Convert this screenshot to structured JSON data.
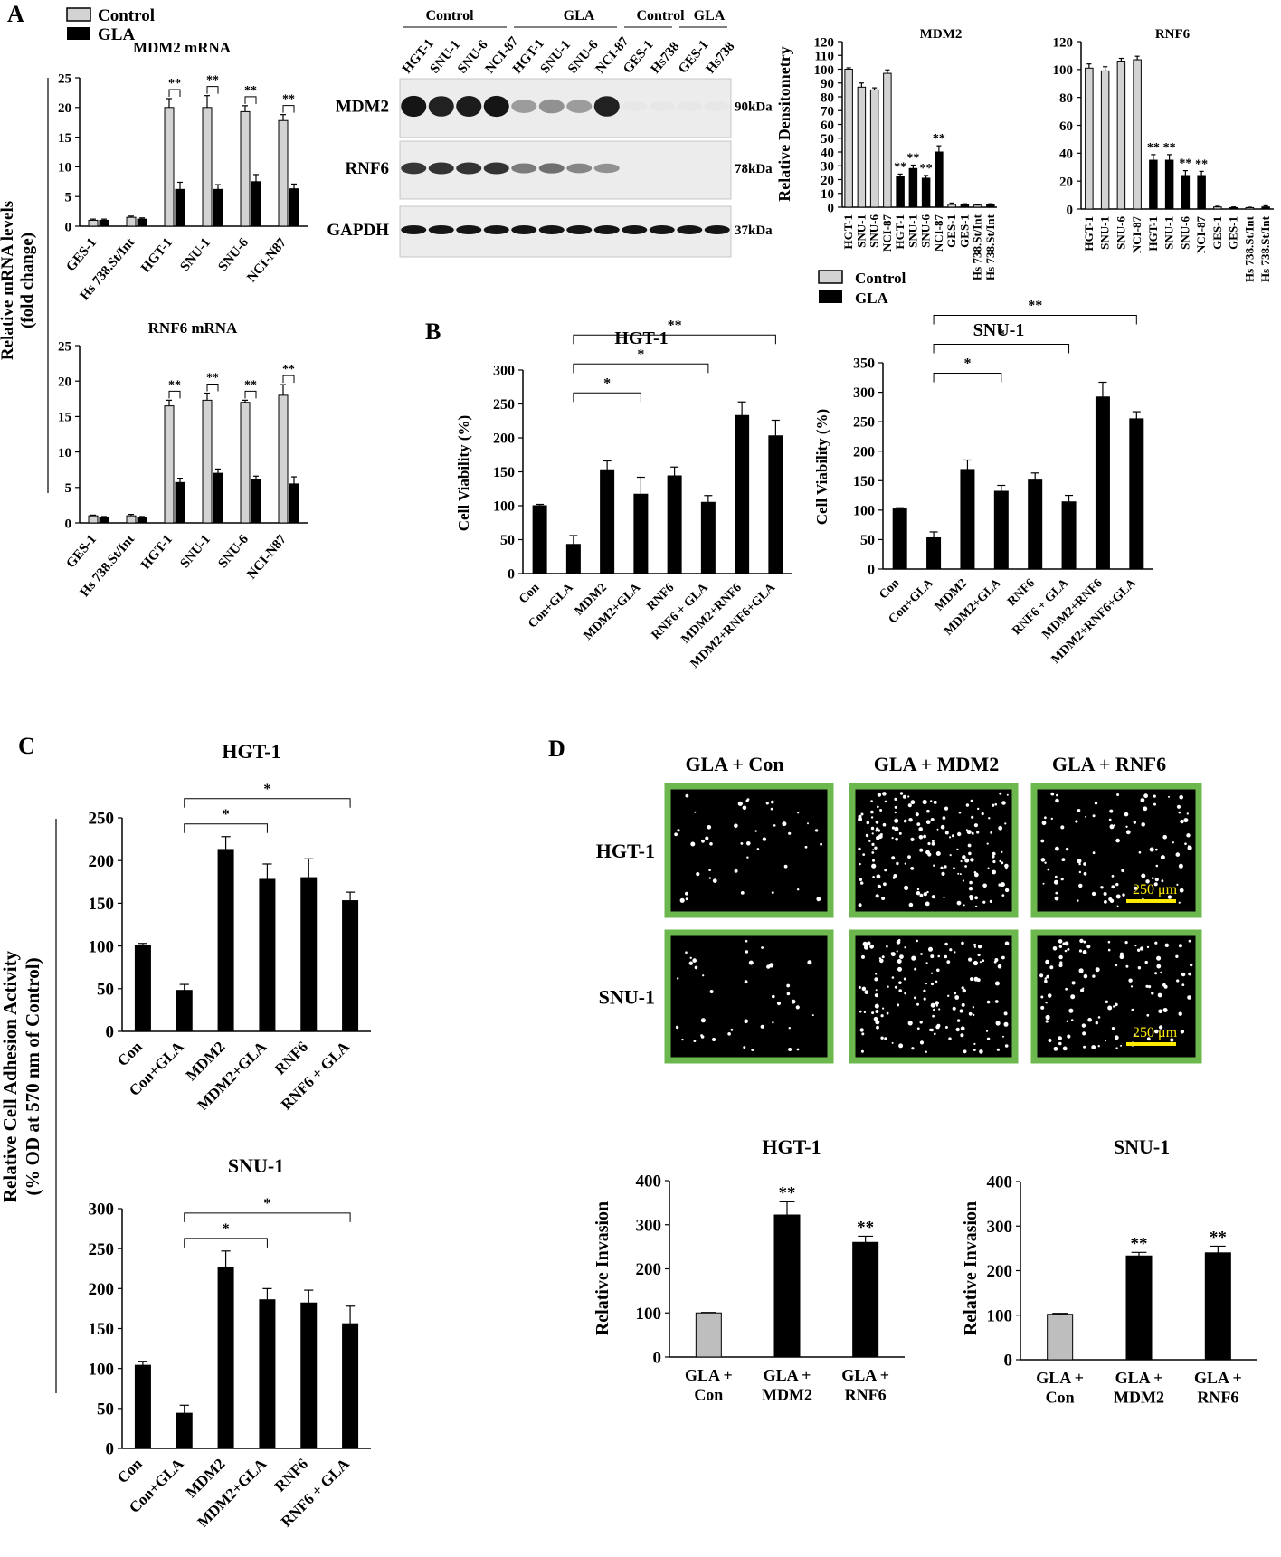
{
  "panels": {
    "A": "A",
    "B": "B",
    "C": "C",
    "D": "D"
  },
  "colors": {
    "control": "#d3d3d3",
    "gla": "#000000",
    "frame": "#6cb84e",
    "scale": "#ffeb00",
    "blot_bg": "#ececec"
  },
  "mrna": {
    "legend": {
      "control": "Control",
      "gla": "GLA"
    },
    "shared_ylabel": [
      "Relative mRNA levels",
      "(fold change)"
    ]
  },
  "blot": {
    "groups": [
      "Control",
      "GLA",
      "Control",
      "GLA"
    ],
    "lanes": [
      "HGT-1",
      "SNU-1",
      "SNU-6",
      "NCI-87",
      "HGT-1",
      "SNU-1",
      "SNU-6",
      "NCI-87",
      "GES-1",
      "Hs738",
      "GES-1",
      "Hs738"
    ],
    "rows": [
      {
        "label": "MDM2",
        "kda": "90kDa",
        "intensities": [
          0.95,
          0.9,
          0.92,
          0.95,
          0.35,
          0.4,
          0.35,
          0.9,
          0.02,
          0.02,
          0.02,
          0.02
        ]
      },
      {
        "label": "RNF6",
        "kda": "78kDa",
        "intensities": [
          0.8,
          0.82,
          0.82,
          0.82,
          0.5,
          0.55,
          0.45,
          0.4,
          0.0,
          0.0,
          0.0,
          0.0
        ]
      },
      {
        "label": "GAPDH",
        "kda": "37kDa",
        "intensities": [
          0.95,
          0.95,
          0.95,
          0.95,
          0.95,
          0.95,
          0.95,
          0.95,
          0.95,
          0.95,
          0.95,
          0.95
        ]
      }
    ]
  },
  "dens_legend": {
    "control": "Control",
    "gla": "GLA"
  },
  "chart_data": [
    {
      "id": "mdm2_mrna",
      "type": "bar",
      "title": "MDM2 mRNA",
      "xlabel": "",
      "ylabel": "",
      "categories": [
        "GES-1",
        "Hs 738.St/Int",
        "HGT-1",
        "SNU-1",
        "SNU-6",
        "NCI-N87"
      ],
      "ylim": [
        0,
        25
      ],
      "yticks": [
        0,
        5,
        10,
        15,
        20,
        25
      ],
      "grid": false,
      "legend": "top-left",
      "series": [
        {
          "name": "Control",
          "values": [
            1.0,
            1.5,
            20.0,
            20.0,
            19.3,
            17.8
          ],
          "errors": [
            0.2,
            0.2,
            1.5,
            2.0,
            1.0,
            1.0
          ]
        },
        {
          "name": "GLA",
          "values": [
            1.0,
            1.2,
            6.2,
            6.2,
            7.5,
            6.3
          ],
          "errors": [
            0.2,
            0.2,
            1.2,
            0.8,
            1.2,
            0.8
          ]
        }
      ],
      "annotations": [
        {
          "text": "**",
          "from": 2,
          "to": 2
        },
        {
          "text": "**",
          "from": 3,
          "to": 3
        },
        {
          "text": "**",
          "from": 4,
          "to": 4
        },
        {
          "text": "**",
          "from": 5,
          "to": 5
        }
      ]
    },
    {
      "id": "rnf6_mrna",
      "type": "bar",
      "title": "RNF6 mRNA",
      "xlabel": "",
      "ylabel": "",
      "categories": [
        "GES-1",
        "Hs 738.St/Int",
        "HGT-1",
        "SNU-1",
        "SNU-6",
        "NCI-N87"
      ],
      "ylim": [
        0,
        25
      ],
      "yticks": [
        0,
        5,
        10,
        15,
        20,
        25
      ],
      "grid": false,
      "series": [
        {
          "name": "Control",
          "values": [
            1.0,
            1.0,
            16.5,
            17.3,
            17.0,
            18.0
          ],
          "errors": [
            0.1,
            0.2,
            0.8,
            1.0,
            0.3,
            1.5
          ]
        },
        {
          "name": "GLA",
          "values": [
            0.8,
            0.8,
            5.7,
            7.0,
            6.1,
            5.5
          ],
          "errors": [
            0.1,
            0.1,
            0.6,
            0.6,
            0.5,
            1.0
          ]
        }
      ],
      "annotations": [
        {
          "text": "**",
          "from": 2,
          "to": 2
        },
        {
          "text": "**",
          "from": 3,
          "to": 3
        },
        {
          "text": "**",
          "from": 4,
          "to": 4
        },
        {
          "text": "**",
          "from": 5,
          "to": 5
        }
      ]
    },
    {
      "id": "mdm2_dens",
      "type": "bar",
      "title": "MDM2",
      "xlabel": "",
      "ylabel": "Relative Densitometry",
      "categories": [
        "HGT-1",
        "SNU-1",
        "SNU-6",
        "NCI-87",
        "HGT-1",
        "SNU-1",
        "SNU-6",
        "NCI-87",
        "GES-1",
        "GES-1",
        "Hs 738.St/Int",
        "Hs 738.St/Int"
      ],
      "ylim": [
        0,
        120
      ],
      "yticks": [
        0,
        10,
        20,
        30,
        40,
        50,
        60,
        70,
        80,
        90,
        100,
        110,
        120
      ],
      "grid": false,
      "values": [
        100,
        87,
        85,
        97,
        22,
        28,
        21,
        40,
        2,
        2,
        1.5,
        2
      ],
      "errors": [
        1,
        3,
        1.5,
        2.5,
        2,
        2.5,
        2,
        4.5,
        1,
        0.5,
        0.5,
        0.5
      ],
      "groups": [
        "Control",
        "Control",
        "Control",
        "Control",
        "GLA",
        "GLA",
        "GLA",
        "GLA",
        "Control",
        "GLA",
        "Control",
        "GLA"
      ],
      "star_labels": [
        "",
        "",
        "",
        "",
        "**",
        "**",
        "**",
        "**",
        "",
        "",
        "",
        ""
      ]
    },
    {
      "id": "rnf6_dens",
      "type": "bar",
      "title": "RNF6",
      "xlabel": "",
      "ylabel": "",
      "categories": [
        "HGT-1",
        "SNU-1",
        "SNU-6",
        "NCI-87",
        "HGT-1",
        "SNU-1",
        "SNU-6",
        "NCI-87",
        "GES-1",
        "GES-1",
        "Hs 738.St/Int",
        "Hs 738.St/Int"
      ],
      "ylim": [
        0,
        120
      ],
      "yticks": [
        0,
        20,
        40,
        60,
        80,
        100,
        120
      ],
      "grid": false,
      "values": [
        101,
        99,
        106,
        107,
        35,
        35,
        24,
        24,
        1.5,
        1,
        1,
        1.5
      ],
      "errors": [
        3,
        3,
        2,
        2.5,
        4,
        4,
        3.5,
        3,
        0.5,
        0.5,
        0.3,
        0.8
      ],
      "groups": [
        "Control",
        "Control",
        "Control",
        "Control",
        "GLA",
        "GLA",
        "GLA",
        "GLA",
        "Control",
        "GLA",
        "Control",
        "GLA"
      ],
      "star_labels": [
        "",
        "",
        "",
        "",
        "**",
        "**",
        "**",
        "**",
        "",
        "",
        "",
        ""
      ]
    },
    {
      "id": "via_hgt",
      "type": "bar",
      "title": "HGT-1",
      "xlabel": "",
      "ylabel": "Cell Viability (%)",
      "categories": [
        "Con",
        "Con+GLA",
        "MDM2",
        "MDM2+GLA",
        "RNF6",
        "RNF6 + GLA",
        "MDM2+RNF6",
        "MDM2+RNF6+GLA"
      ],
      "ylim": [
        0,
        300
      ],
      "yticks": [
        0,
        50,
        100,
        150,
        200,
        250,
        300
      ],
      "grid": false,
      "values": [
        100,
        43,
        153,
        117,
        144,
        105,
        233,
        203
      ],
      "errors": [
        2,
        13,
        13,
        25,
        13,
        10,
        20,
        23
      ],
      "brackets": [
        {
          "from": 1,
          "to": 3,
          "text": "*"
        },
        {
          "from": 1,
          "to": 5,
          "text": "*"
        },
        {
          "from": 1,
          "to": 7,
          "text": "**"
        }
      ]
    },
    {
      "id": "via_snu",
      "type": "bar",
      "title": "SNU-1",
      "xlabel": "",
      "ylabel": "Cell Viability (%)",
      "categories": [
        "Con",
        "Con+GLA",
        "MDM2",
        "MDM2+GLA",
        "RNF6",
        "RNF6 + GLA",
        "MDM2+RNF6",
        "MDM2+RNF6+GLA"
      ],
      "ylim": [
        0,
        350
      ],
      "yticks": [
        0,
        50,
        100,
        150,
        200,
        250,
        300,
        350
      ],
      "grid": false,
      "values": [
        102,
        53,
        169,
        132,
        151,
        114,
        292,
        255
      ],
      "errors": [
        2,
        10,
        16,
        10,
        12,
        11,
        25,
        12
      ],
      "brackets": [
        {
          "from": 1,
          "to": 3,
          "text": "*"
        },
        {
          "from": 1,
          "to": 5,
          "text": "*"
        },
        {
          "from": 1,
          "to": 7,
          "text": "**"
        }
      ]
    },
    {
      "id": "adh_hgt",
      "type": "bar",
      "title": "HGT-1",
      "xlabel": "",
      "ylabel": "",
      "categories": [
        "Con",
        "Con+GLA",
        "MDM2",
        "MDM2+GLA",
        "RNF6",
        "RNF6 + GLA"
      ],
      "ylim": [
        0,
        250
      ],
      "yticks": [
        0,
        50,
        100,
        150,
        200,
        250
      ],
      "grid": false,
      "values": [
        101,
        48,
        213,
        178,
        180,
        153
      ],
      "errors": [
        2,
        7,
        15,
        18,
        22,
        10
      ],
      "brackets": [
        {
          "from": 1,
          "to": 3,
          "text": "*"
        },
        {
          "from": 1,
          "to": 5,
          "text": "*"
        }
      ]
    },
    {
      "id": "adh_snu",
      "type": "bar",
      "title": "SNU-1",
      "xlabel": "",
      "ylabel": "",
      "categories": [
        "Con",
        "Con+GLA",
        "MDM2",
        "MDM2+GLA",
        "RNF6",
        "RNF6 + GLA"
      ],
      "ylim": [
        0,
        300
      ],
      "yticks": [
        0,
        50,
        100,
        150,
        200,
        250,
        300
      ],
      "grid": false,
      "values": [
        104,
        44,
        227,
        186,
        182,
        156
      ],
      "errors": [
        5,
        10,
        20,
        14,
        16,
        22
      ],
      "brackets": [
        {
          "from": 1,
          "to": 3,
          "text": "*"
        },
        {
          "from": 1,
          "to": 5,
          "text": "*"
        }
      ]
    },
    {
      "id": "inv_hgt",
      "type": "bar",
      "title": "HGT-1",
      "xlabel": "",
      "ylabel": "Relative Invasion",
      "categories": [
        "GLA + Con",
        "GLA + MDM2",
        "GLA + RNF6"
      ],
      "ylim": [
        0,
        400
      ],
      "yticks": [
        0,
        100,
        200,
        300,
        400
      ],
      "grid": false,
      "values": [
        100,
        322,
        260
      ],
      "errors": [
        1,
        30,
        14
      ],
      "bar_colors": [
        "#bebebe",
        "#000000",
        "#000000"
      ],
      "star_labels": [
        "",
        "**",
        "**"
      ]
    },
    {
      "id": "inv_snu",
      "type": "bar",
      "title": "SNU-1",
      "xlabel": "",
      "ylabel": "Relative Invasion",
      "categories": [
        "GLA + Con",
        "GLA + MDM2",
        "GLA + RNF6"
      ],
      "ylim": [
        0,
        400
      ],
      "yticks": [
        0,
        100,
        200,
        300,
        400
      ],
      "grid": false,
      "values": [
        102,
        233,
        240
      ],
      "errors": [
        2,
        8,
        15
      ],
      "bar_colors": [
        "#bebebe",
        "#000000",
        "#000000"
      ],
      "star_labels": [
        "",
        "**",
        "**"
      ]
    }
  ],
  "adhesion_ylabel": [
    "Relative Cell Adhesion Activity",
    "(% OD at 570 nm of Control)"
  ],
  "micro": {
    "cols": [
      "GLA + Con",
      "GLA + MDM2",
      "GLA + RNF6"
    ],
    "rows": [
      "HGT-1",
      "SNU-1"
    ],
    "dot_density": [
      [
        45,
        170,
        95
      ],
      [
        40,
        140,
        110
      ]
    ],
    "scale_label": "250 μm"
  }
}
